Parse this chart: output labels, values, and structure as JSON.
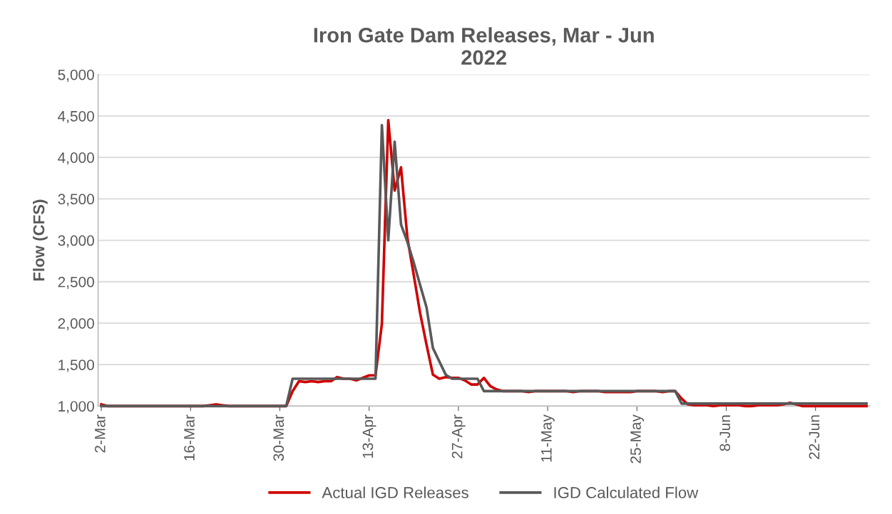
{
  "chart_data": {
    "type": "line",
    "title": "Iron Gate Dam Releases, Mar - Jun\n2022",
    "ylabel": "Flow (CFS)",
    "x": [
      "2022-03-02",
      "2022-03-03",
      "2022-03-04",
      "2022-03-05",
      "2022-03-06",
      "2022-03-07",
      "2022-03-08",
      "2022-03-09",
      "2022-03-10",
      "2022-03-11",
      "2022-03-12",
      "2022-03-13",
      "2022-03-14",
      "2022-03-15",
      "2022-03-16",
      "2022-03-17",
      "2022-03-18",
      "2022-03-19",
      "2022-03-20",
      "2022-03-21",
      "2022-03-22",
      "2022-03-23",
      "2022-03-24",
      "2022-03-25",
      "2022-03-26",
      "2022-03-27",
      "2022-03-28",
      "2022-03-29",
      "2022-03-30",
      "2022-03-31",
      "2022-04-01",
      "2022-04-02",
      "2022-04-03",
      "2022-04-04",
      "2022-04-05",
      "2022-04-06",
      "2022-04-07",
      "2022-04-08",
      "2022-04-09",
      "2022-04-10",
      "2022-04-11",
      "2022-04-12",
      "2022-04-13",
      "2022-04-14",
      "2022-04-15",
      "2022-04-16",
      "2022-04-17",
      "2022-04-18",
      "2022-04-19",
      "2022-04-20",
      "2022-04-21",
      "2022-04-22",
      "2022-04-23",
      "2022-04-24",
      "2022-04-25",
      "2022-04-26",
      "2022-04-27",
      "2022-04-28",
      "2022-04-29",
      "2022-04-30",
      "2022-05-01",
      "2022-05-02",
      "2022-05-03",
      "2022-05-04",
      "2022-05-05",
      "2022-05-06",
      "2022-05-07",
      "2022-05-08",
      "2022-05-09",
      "2022-05-10",
      "2022-05-11",
      "2022-05-12",
      "2022-05-13",
      "2022-05-14",
      "2022-05-15",
      "2022-05-16",
      "2022-05-17",
      "2022-05-18",
      "2022-05-19",
      "2022-05-20",
      "2022-05-21",
      "2022-05-22",
      "2022-05-23",
      "2022-05-24",
      "2022-05-25",
      "2022-05-26",
      "2022-05-27",
      "2022-05-28",
      "2022-05-29",
      "2022-05-30",
      "2022-05-31",
      "2022-06-01",
      "2022-06-02",
      "2022-06-03",
      "2022-06-04",
      "2022-06-05",
      "2022-06-06",
      "2022-06-07",
      "2022-06-08",
      "2022-06-09",
      "2022-06-10",
      "2022-06-11",
      "2022-06-12",
      "2022-06-13",
      "2022-06-14",
      "2022-06-15",
      "2022-06-16",
      "2022-06-17",
      "2022-06-18",
      "2022-06-19",
      "2022-06-20",
      "2022-06-21",
      "2022-06-22",
      "2022-06-23",
      "2022-06-24",
      "2022-06-25",
      "2022-06-26",
      "2022-06-27",
      "2022-06-28",
      "2022-06-29",
      "2022-06-30"
    ],
    "series": [
      {
        "name": "Actual IGD Releases",
        "color": "#d00000",
        "values": [
          1020,
          1000,
          1000,
          1000,
          1000,
          1000,
          1000,
          1000,
          1000,
          1000,
          1000,
          1000,
          1000,
          1000,
          1000,
          1000,
          1000,
          1010,
          1020,
          1010,
          1000,
          1000,
          1000,
          1000,
          1000,
          1000,
          1000,
          1000,
          1000,
          1000,
          1180,
          1300,
          1290,
          1300,
          1290,
          1300,
          1300,
          1350,
          1330,
          1330,
          1310,
          1340,
          1370,
          1370,
          1990,
          4450,
          3600,
          3880,
          3030,
          2580,
          2120,
          1740,
          1380,
          1330,
          1350,
          1340,
          1340,
          1310,
          1260,
          1260,
          1340,
          1240,
          1200,
          1180,
          1180,
          1180,
          1180,
          1170,
          1180,
          1180,
          1180,
          1180,
          1180,
          1180,
          1170,
          1180,
          1180,
          1180,
          1180,
          1170,
          1170,
          1170,
          1170,
          1170,
          1180,
          1180,
          1180,
          1180,
          1170,
          1180,
          1180,
          1090,
          1020,
          1010,
          1010,
          1010,
          1000,
          1010,
          1010,
          1010,
          1010,
          1000,
          1000,
          1010,
          1010,
          1010,
          1010,
          1020,
          1040,
          1020,
          1000,
          1000,
          1000,
          1000,
          1000,
          1000,
          1000,
          1000,
          1000,
          1000,
          1000
        ]
      },
      {
        "name": "IGD Calculated Flow",
        "color": "#595959",
        "values": [
          1000,
          1000,
          1000,
          1000,
          1000,
          1000,
          1000,
          1000,
          1000,
          1000,
          1000,
          1000,
          1000,
          1000,
          1000,
          1000,
          1000,
          1000,
          1000,
          1000,
          1000,
          1000,
          1000,
          1000,
          1000,
          1000,
          1000,
          1000,
          1000,
          1000,
          1330,
          1330,
          1330,
          1330,
          1330,
          1330,
          1330,
          1330,
          1330,
          1330,
          1330,
          1330,
          1330,
          1330,
          4390,
          3000,
          4190,
          3190,
          2980,
          2730,
          2460,
          2190,
          1700,
          1540,
          1380,
          1330,
          1330,
          1330,
          1330,
          1330,
          1180,
          1180,
          1180,
          1180,
          1180,
          1180,
          1180,
          1180,
          1180,
          1180,
          1180,
          1180,
          1180,
          1180,
          1180,
          1180,
          1180,
          1180,
          1180,
          1180,
          1180,
          1180,
          1180,
          1180,
          1180,
          1180,
          1180,
          1180,
          1180,
          1180,
          1180,
          1030,
          1030,
          1030,
          1030,
          1030,
          1030,
          1030,
          1030,
          1030,
          1030,
          1030,
          1030,
          1030,
          1030,
          1030,
          1030,
          1030,
          1030,
          1030,
          1030,
          1030,
          1030,
          1030,
          1030,
          1030,
          1030,
          1030,
          1030,
          1030,
          1030
        ]
      }
    ],
    "xlim": [
      "2022-03-01T12:00",
      "2022-06-30T12:00"
    ],
    "xticks": [
      {
        "value": "2022-03-02",
        "label": "2-Mar"
      },
      {
        "value": "2022-03-16",
        "label": "16-Mar"
      },
      {
        "value": "2022-03-30",
        "label": "30-Mar"
      },
      {
        "value": "2022-04-13",
        "label": "13-Apr"
      },
      {
        "value": "2022-04-27",
        "label": "27-Apr"
      },
      {
        "value": "2022-05-11",
        "label": "11-May"
      },
      {
        "value": "2022-05-25",
        "label": "25-May"
      },
      {
        "value": "2022-06-08",
        "label": "8-Jun"
      },
      {
        "value": "2022-06-22",
        "label": "22-Jun"
      }
    ],
    "ylim": [
      1000,
      5000
    ],
    "yticks": [
      {
        "value": 1000,
        "label": "1,000"
      },
      {
        "value": 1500,
        "label": "1,500"
      },
      {
        "value": 2000,
        "label": "2,000"
      },
      {
        "value": 2500,
        "label": "2,500"
      },
      {
        "value": 3000,
        "label": "3,000"
      },
      {
        "value": 3500,
        "label": "3,500"
      },
      {
        "value": 4000,
        "label": "4,000"
      },
      {
        "value": 4500,
        "label": "4,500"
      },
      {
        "value": 5000,
        "label": "5,000"
      }
    ],
    "grid": "y",
    "legend": "bottom",
    "marker": "none",
    "line_style": "solid"
  }
}
